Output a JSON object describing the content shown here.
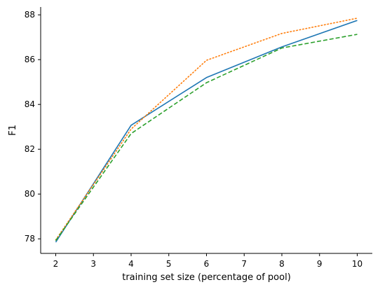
{
  "chart_data": {
    "type": "line",
    "title": "",
    "xlabel": "training set size (percentage of pool)",
    "ylabel": "F1",
    "x": [
      2,
      4,
      6,
      8,
      10
    ],
    "xlim": [
      1.6,
      10.4
    ],
    "ylim": [
      77.35,
      88.35
    ],
    "xticks": [
      "2",
      "3",
      "4",
      "5",
      "6",
      "7",
      "8",
      "9",
      "10"
    ],
    "yticks": [
      "78",
      "80",
      "82",
      "84",
      "86",
      "88"
    ],
    "grid": false,
    "legend": "none",
    "series": [
      {
        "color": "#1f77b4",
        "style": "solid",
        "values": [
          77.85,
          83.07,
          85.2,
          86.57,
          87.75
        ]
      },
      {
        "color": "#ff7f0e",
        "style": "dotted",
        "values": [
          77.95,
          82.9,
          85.97,
          87.17,
          87.85
        ]
      },
      {
        "color": "#2ca02c",
        "style": "dashed",
        "values": [
          77.92,
          82.7,
          84.97,
          86.52,
          87.13
        ]
      }
    ]
  }
}
